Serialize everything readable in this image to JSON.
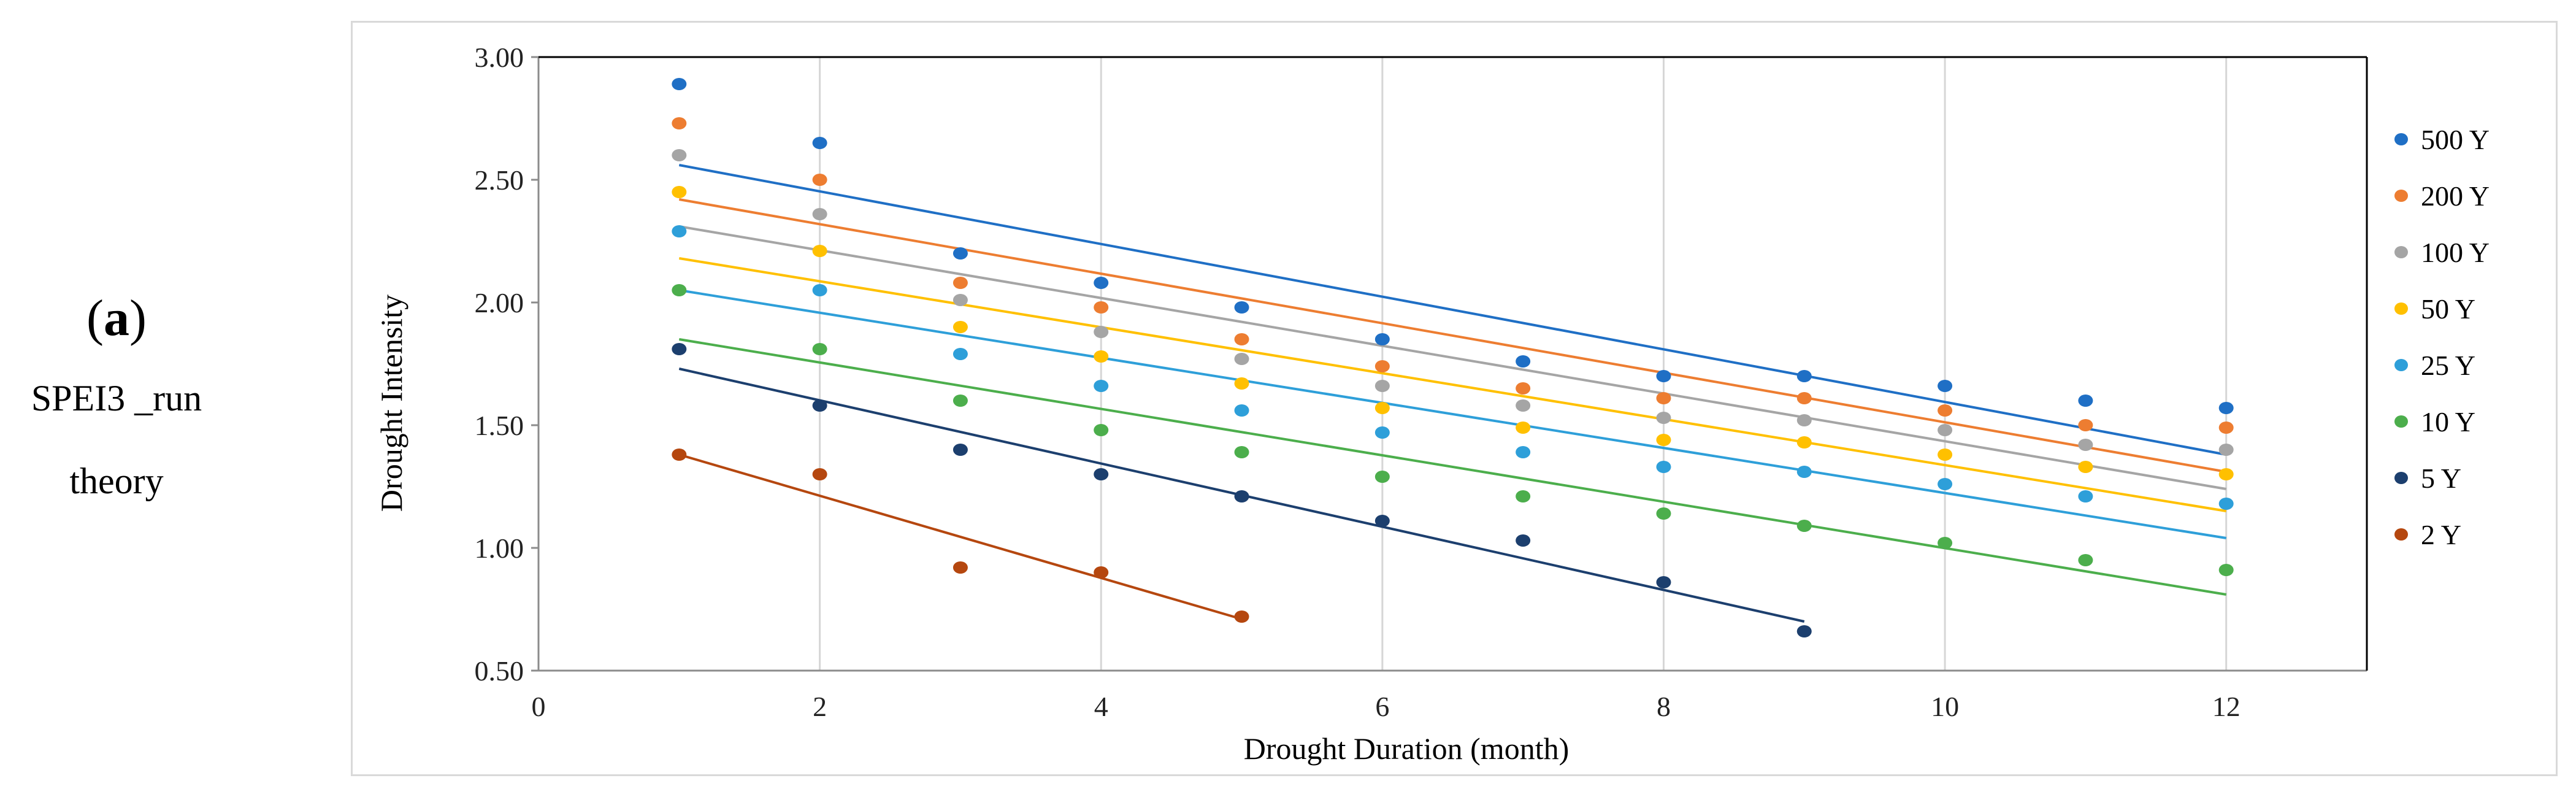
{
  "panel": {
    "open": "(",
    "letter": "a",
    "close": ")",
    "method": "SPEI3 _run",
    "theory": "theory"
  },
  "chart_data": {
    "type": "scatter",
    "title": "",
    "xlabel": "Drought Duration (month)",
    "ylabel": "Drought Intensity",
    "xlim": [
      0,
      13
    ],
    "ylim": [
      0.5,
      3.0
    ],
    "xticks": [
      0,
      2,
      4,
      6,
      8,
      10,
      12
    ],
    "yticks": [
      0.5,
      1.0,
      1.5,
      2.0,
      2.5,
      3.0
    ],
    "ytick_labels": [
      "0.50",
      "1.00",
      "1.50",
      "2.00",
      "2.50",
      "3.00"
    ],
    "grid": "vertical",
    "legend_position": "right",
    "series": [
      {
        "name": "500 Y",
        "color": "#1f6fc5",
        "x": [
          1,
          2,
          3,
          4,
          5,
          6,
          7,
          8,
          9,
          10,
          11,
          12
        ],
        "y": [
          2.89,
          2.65,
          2.2,
          2.08,
          1.98,
          1.85,
          1.76,
          1.7,
          1.7,
          1.66,
          1.6,
          1.57
        ],
        "trend": [
          [
            1,
            2.56
          ],
          [
            12,
            1.38
          ]
        ]
      },
      {
        "name": "200 Y",
        "color": "#ed7d31",
        "x": [
          1,
          2,
          3,
          4,
          5,
          6,
          7,
          8,
          9,
          10,
          11,
          12
        ],
        "y": [
          2.73,
          2.5,
          2.08,
          1.98,
          1.85,
          1.74,
          1.65,
          1.61,
          1.61,
          1.56,
          1.5,
          1.49
        ],
        "trend": [
          [
            1,
            2.42
          ],
          [
            12,
            1.31
          ]
        ]
      },
      {
        "name": "100 Y",
        "color": "#a5a5a5",
        "x": [
          1,
          2,
          3,
          4,
          5,
          6,
          7,
          8,
          9,
          10,
          11,
          12
        ],
        "y": [
          2.6,
          2.36,
          2.01,
          1.88,
          1.77,
          1.66,
          1.58,
          1.53,
          1.52,
          1.48,
          1.42,
          1.4
        ],
        "trend": [
          [
            1,
            2.31
          ],
          [
            12,
            1.24
          ]
        ]
      },
      {
        "name": "50 Y",
        "color": "#ffc000",
        "x": [
          1,
          2,
          3,
          4,
          5,
          6,
          7,
          8,
          9,
          10,
          11,
          12
        ],
        "y": [
          2.45,
          2.21,
          1.9,
          1.78,
          1.67,
          1.57,
          1.49,
          1.44,
          1.43,
          1.38,
          1.33,
          1.3
        ],
        "trend": [
          [
            1,
            2.18
          ],
          [
            12,
            1.15
          ]
        ]
      },
      {
        "name": "25 Y",
        "color": "#2e9fd9",
        "x": [
          1,
          2,
          3,
          4,
          5,
          6,
          7,
          8,
          9,
          10,
          11,
          12
        ],
        "y": [
          2.29,
          2.05,
          1.79,
          1.66,
          1.56,
          1.47,
          1.39,
          1.33,
          1.31,
          1.26,
          1.21,
          1.18
        ],
        "trend": [
          [
            1,
            2.05
          ],
          [
            12,
            1.04
          ]
        ]
      },
      {
        "name": "10 Y",
        "color": "#4cae4c",
        "x": [
          1,
          2,
          3,
          4,
          5,
          6,
          7,
          8,
          9,
          10,
          11,
          12
        ],
        "y": [
          2.05,
          1.81,
          1.6,
          1.48,
          1.39,
          1.29,
          1.21,
          1.14,
          1.09,
          1.02,
          0.95,
          0.91
        ],
        "trend": [
          [
            1,
            1.85
          ],
          [
            12,
            0.81
          ]
        ]
      },
      {
        "name": "5 Y",
        "color": "#1c3f6e",
        "x": [
          1,
          2,
          3,
          4,
          5,
          6,
          7,
          8,
          9
        ],
        "y": [
          1.81,
          1.58,
          1.4,
          1.3,
          1.21,
          1.11,
          1.03,
          0.86,
          0.66
        ],
        "trend": [
          [
            1,
            1.73
          ],
          [
            9,
            0.7
          ]
        ]
      },
      {
        "name": "2 Y",
        "color": "#b5470f",
        "x": [
          1,
          2,
          3,
          4,
          5
        ],
        "y": [
          1.38,
          1.3,
          0.92,
          0.9,
          0.72
        ],
        "trend": [
          [
            1,
            1.38
          ],
          [
            5,
            0.71
          ]
        ]
      }
    ]
  }
}
